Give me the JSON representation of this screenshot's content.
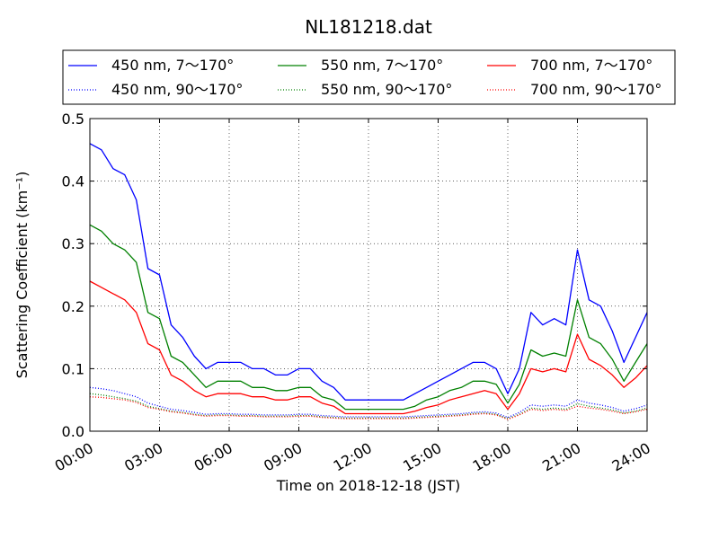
{
  "chart_data": {
    "type": "line",
    "title": "NL181218.dat",
    "xlabel": "Time on 2018-12-18 (JST)",
    "ylabel": "Scattering Coefficient (km⁻¹)",
    "xlim": [
      0,
      24
    ],
    "ylim": [
      0,
      0.5
    ],
    "grid": true,
    "legend_position": "top",
    "x_ticks": [
      0,
      3,
      6,
      9,
      12,
      15,
      18,
      21,
      24
    ],
    "x_tick_labels": [
      "00:00",
      "03:00",
      "06:00",
      "09:00",
      "12:00",
      "15:00",
      "18:00",
      "21:00",
      "24:00"
    ],
    "y_ticks": [
      0.0,
      0.1,
      0.2,
      0.3,
      0.4,
      0.5
    ],
    "y_tick_labels": [
      "0.0",
      "0.1",
      "0.2",
      "0.3",
      "0.4",
      "0.5"
    ],
    "x": [
      0.0,
      0.5,
      1.0,
      1.5,
      2.0,
      2.5,
      3.0,
      3.5,
      4.0,
      4.5,
      5.0,
      5.5,
      6.0,
      6.5,
      7.0,
      7.5,
      8.0,
      8.5,
      9.0,
      9.5,
      10.0,
      10.5,
      11.0,
      11.5,
      12.0,
      12.5,
      13.0,
      13.5,
      14.0,
      14.5,
      15.0,
      15.5,
      16.0,
      16.5,
      17.0,
      17.5,
      18.0,
      18.5,
      19.0,
      19.5,
      20.0,
      20.5,
      21.0,
      21.5,
      22.0,
      22.5,
      23.0,
      23.5,
      24.0
    ],
    "series": [
      {
        "name": "450 nm, 7～170°",
        "color": "#0000ff",
        "style": "solid",
        "values": [
          0.46,
          0.45,
          0.42,
          0.41,
          0.37,
          0.26,
          0.25,
          0.17,
          0.15,
          0.12,
          0.1,
          0.11,
          0.11,
          0.11,
          0.1,
          0.1,
          0.09,
          0.09,
          0.1,
          0.1,
          0.08,
          0.07,
          0.05,
          0.05,
          0.05,
          0.05,
          0.05,
          0.05,
          0.06,
          0.07,
          0.08,
          0.09,
          0.1,
          0.11,
          0.11,
          0.1,
          0.06,
          0.1,
          0.19,
          0.17,
          0.18,
          0.17,
          0.29,
          0.21,
          0.2,
          0.16,
          0.11,
          0.15,
          0.19
        ]
      },
      {
        "name": "450 nm, 90～170°",
        "color": "#0000ff",
        "style": "dotted",
        "values": [
          0.07,
          0.068,
          0.065,
          0.06,
          0.055,
          0.045,
          0.04,
          0.035,
          0.033,
          0.03,
          0.027,
          0.028,
          0.028,
          0.027,
          0.027,
          0.026,
          0.026,
          0.026,
          0.027,
          0.027,
          0.025,
          0.024,
          0.023,
          0.023,
          0.023,
          0.023,
          0.023,
          0.023,
          0.024,
          0.025,
          0.026,
          0.027,
          0.028,
          0.03,
          0.031,
          0.029,
          0.022,
          0.03,
          0.042,
          0.04,
          0.042,
          0.04,
          0.05,
          0.045,
          0.042,
          0.038,
          0.032,
          0.036,
          0.042
        ]
      },
      {
        "name": "550 nm, 7～170°",
        "color": "#008000",
        "style": "solid",
        "values": [
          0.33,
          0.32,
          0.3,
          0.29,
          0.27,
          0.19,
          0.18,
          0.12,
          0.11,
          0.09,
          0.07,
          0.08,
          0.08,
          0.08,
          0.07,
          0.07,
          0.065,
          0.065,
          0.07,
          0.07,
          0.055,
          0.05,
          0.035,
          0.035,
          0.035,
          0.035,
          0.035,
          0.035,
          0.04,
          0.05,
          0.055,
          0.065,
          0.07,
          0.08,
          0.08,
          0.075,
          0.045,
          0.075,
          0.13,
          0.12,
          0.125,
          0.12,
          0.21,
          0.15,
          0.14,
          0.115,
          0.08,
          0.11,
          0.14
        ]
      },
      {
        "name": "550 nm, 90～170°",
        "color": "#008000",
        "style": "dotted",
        "values": [
          0.06,
          0.058,
          0.055,
          0.052,
          0.048,
          0.04,
          0.036,
          0.032,
          0.03,
          0.027,
          0.025,
          0.026,
          0.026,
          0.025,
          0.025,
          0.024,
          0.024,
          0.024,
          0.025,
          0.025,
          0.023,
          0.022,
          0.021,
          0.021,
          0.021,
          0.021,
          0.021,
          0.021,
          0.022,
          0.023,
          0.024,
          0.025,
          0.026,
          0.028,
          0.029,
          0.027,
          0.02,
          0.027,
          0.037,
          0.035,
          0.037,
          0.035,
          0.044,
          0.04,
          0.037,
          0.034,
          0.029,
          0.032,
          0.037
        ]
      },
      {
        "name": "700 nm, 7～170°",
        "color": "#ff0000",
        "style": "solid",
        "values": [
          0.24,
          0.23,
          0.22,
          0.21,
          0.19,
          0.14,
          0.13,
          0.09,
          0.08,
          0.065,
          0.055,
          0.06,
          0.06,
          0.06,
          0.055,
          0.055,
          0.05,
          0.05,
          0.055,
          0.055,
          0.045,
          0.04,
          0.028,
          0.028,
          0.028,
          0.028,
          0.028,
          0.028,
          0.032,
          0.038,
          0.042,
          0.05,
          0.055,
          0.06,
          0.065,
          0.06,
          0.035,
          0.06,
          0.1,
          0.095,
          0.1,
          0.095,
          0.155,
          0.115,
          0.105,
          0.09,
          0.07,
          0.085,
          0.105
        ]
      },
      {
        "name": "700 nm, 90～170°",
        "color": "#ff0000",
        "style": "dotted",
        "values": [
          0.055,
          0.054,
          0.052,
          0.05,
          0.046,
          0.038,
          0.035,
          0.031,
          0.029,
          0.026,
          0.024,
          0.025,
          0.025,
          0.024,
          0.024,
          0.023,
          0.023,
          0.023,
          0.024,
          0.024,
          0.022,
          0.021,
          0.02,
          0.02,
          0.02,
          0.02,
          0.02,
          0.02,
          0.021,
          0.022,
          0.023,
          0.024,
          0.025,
          0.027,
          0.028,
          0.026,
          0.019,
          0.026,
          0.035,
          0.033,
          0.035,
          0.033,
          0.04,
          0.037,
          0.035,
          0.032,
          0.028,
          0.031,
          0.035
        ]
      }
    ]
  }
}
